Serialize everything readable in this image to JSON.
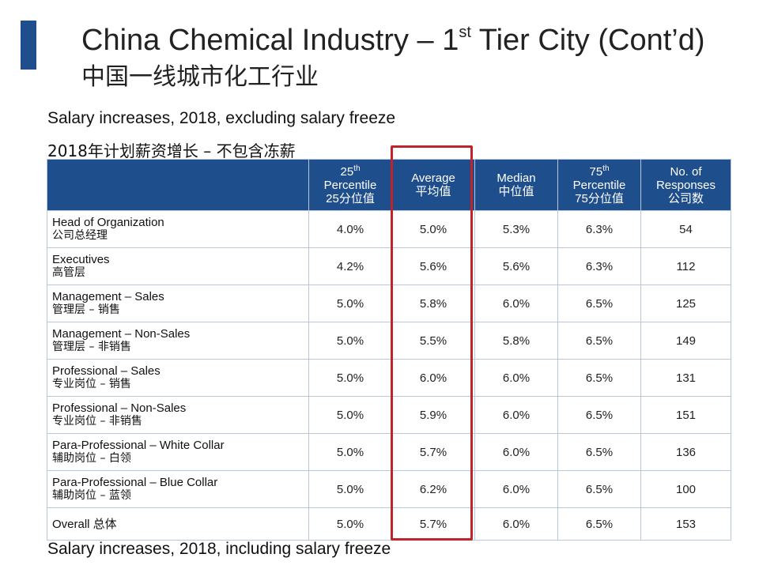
{
  "title": {
    "main": "China Chemical Industry – 1",
    "sup": "st",
    "rest": " Tier City (Cont’d)",
    "cn": "中国一线城市化工行业"
  },
  "captions": {
    "excluding": "Salary increases, 2018, excluding salary freeze",
    "excluding_cn": "2018年计划薪资增长 – 不包含冻薪",
    "including": "Salary increases, 2018, including salary freeze"
  },
  "colors": {
    "accent": "#1f4e8c",
    "header_bg": "#1f4e8c",
    "highlight": "#c0242b"
  },
  "table": {
    "columns": [
      {
        "l1": "25",
        "sup": "th",
        "l2": "Percentile",
        "l3": "25分位值"
      },
      {
        "l1": "Average",
        "sup": "",
        "l2": "平均值",
        "l3": ""
      },
      {
        "l1": "Median",
        "sup": "",
        "l2": "中位值",
        "l3": ""
      },
      {
        "l1": "75",
        "sup": "th",
        "l2": "Percentile",
        "l3": "75分位值"
      },
      {
        "l1": "No. of",
        "sup": "",
        "l2": "Responses",
        "l3": "公司数"
      }
    ],
    "rows": [
      {
        "en": "Head of Organization",
        "cn": "公司总经理",
        "p25": "4.0%",
        "avg": "5.0%",
        "median": "5.3%",
        "p75": "6.3%",
        "n": "54"
      },
      {
        "en": "Executives",
        "cn": "高管层",
        "p25": "4.2%",
        "avg": "5.6%",
        "median": "5.6%",
        "p75": "6.3%",
        "n": "112"
      },
      {
        "en": "Management – Sales",
        "cn": "管理层 – 销售",
        "p25": "5.0%",
        "avg": "5.8%",
        "median": "6.0%",
        "p75": "6.5%",
        "n": "125"
      },
      {
        "en": "Management – Non-Sales",
        "cn": "管理层 – 非销售",
        "p25": "5.0%",
        "avg": "5.5%",
        "median": "5.8%",
        "p75": "6.5%",
        "n": "149"
      },
      {
        "en": "Professional – Sales",
        "cn": "专业岗位 – 销售",
        "p25": "5.0%",
        "avg": "6.0%",
        "median": "6.0%",
        "p75": "6.5%",
        "n": "131"
      },
      {
        "en": "Professional – Non-Sales",
        "cn": "专业岗位 – 非销售",
        "p25": "5.0%",
        "avg": "5.9%",
        "median": "6.0%",
        "p75": "6.5%",
        "n": "151"
      },
      {
        "en": "Para-Professional – White Collar",
        "cn": "辅助岗位 – 白领",
        "p25": "5.0%",
        "avg": "5.7%",
        "median": "6.0%",
        "p75": "6.5%",
        "n": "136"
      },
      {
        "en": "Para-Professional – Blue Collar",
        "cn": "辅助岗位 – 蓝领",
        "p25": "5.0%",
        "avg": "6.2%",
        "median": "6.0%",
        "p75": "6.5%",
        "n": "100"
      }
    ],
    "overall": {
      "label": "Overall 总体",
      "p25": "5.0%",
      "avg": "5.7%",
      "median": "6.0%",
      "p75": "6.5%",
      "n": "153"
    }
  }
}
